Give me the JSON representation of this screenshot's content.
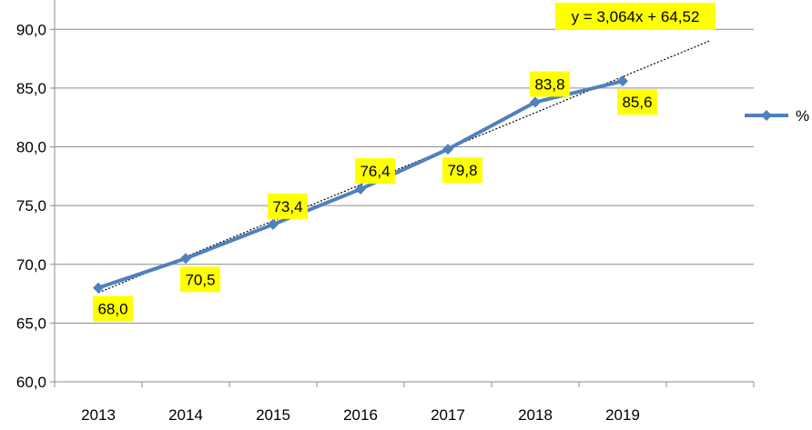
{
  "chart_data": {
    "type": "line",
    "categories": [
      "2013",
      "2014",
      "2015",
      "2016",
      "2017",
      "2018",
      "2019"
    ],
    "series": [
      {
        "name": "%",
        "values": [
          68.0,
          70.5,
          73.4,
          76.4,
          79.8,
          83.8,
          85.6
        ],
        "labels": [
          "68,0",
          "70,5",
          "73,4",
          "76,4",
          "79,8",
          "83,8",
          "85,6"
        ],
        "color": "#4F81BD"
      }
    ],
    "y_ticks": [
      60,
      65,
      70,
      75,
      80,
      85,
      90
    ],
    "y_tick_labels": [
      "60,0",
      "65,0",
      "70,0",
      "75,0",
      "80,0",
      "85,0",
      "90,0"
    ],
    "ylim": [
      60,
      92.5
    ],
    "grid": "horizontal",
    "legend": {
      "position": "right",
      "label": "%"
    },
    "trendline": {
      "type": "linear",
      "slope": 3.064,
      "intercept": 64.52,
      "equation": "y = 3,064x + 64,52",
      "color": "#000000"
    },
    "label_bg_color": "#FFFF00",
    "title": "",
    "xlabel": "",
    "ylabel": ""
  }
}
